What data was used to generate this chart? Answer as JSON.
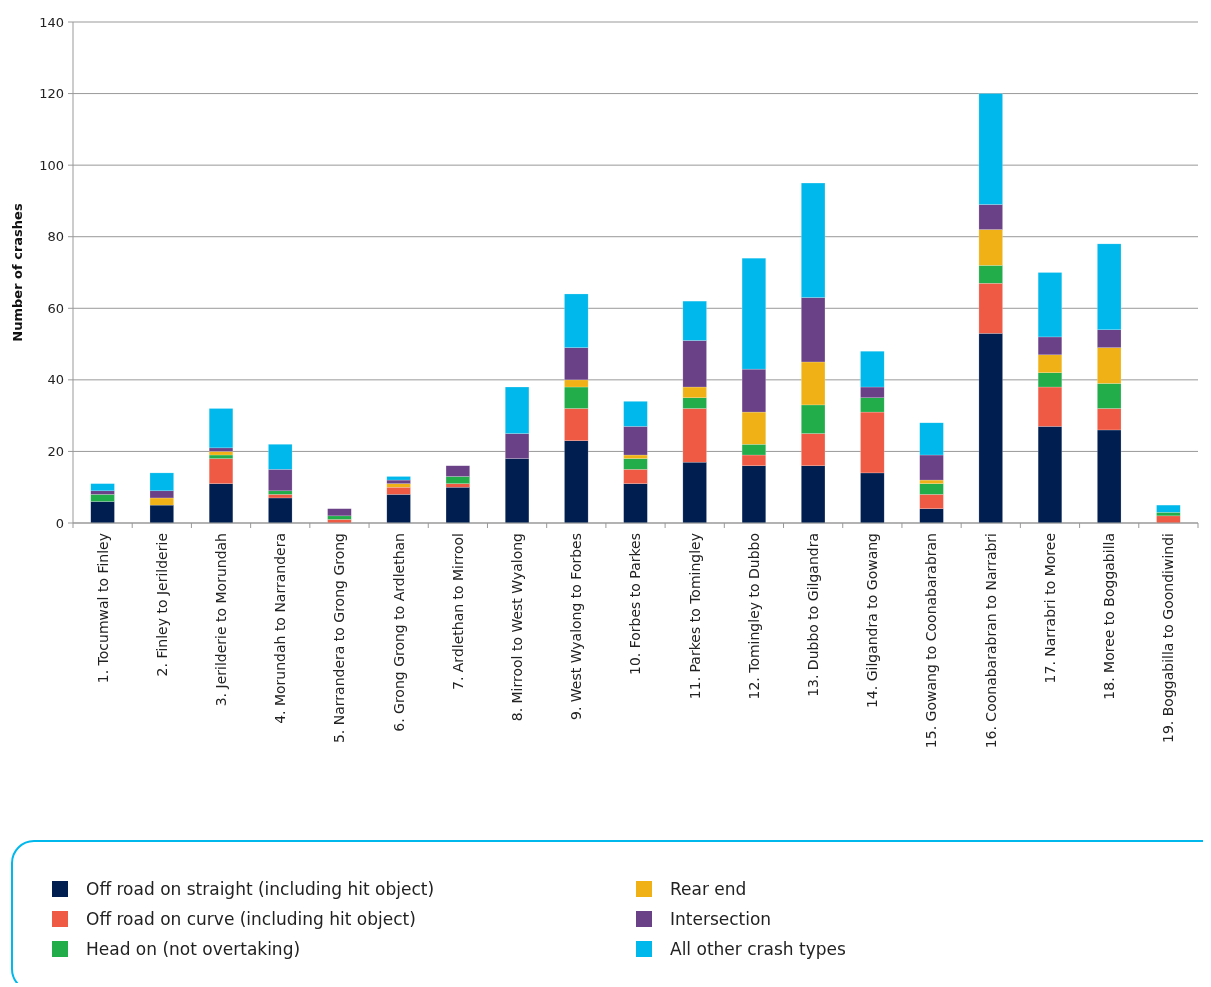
{
  "chart_data": {
    "type": "bar",
    "stacked": true,
    "ylabel": "Number of crashes",
    "categories": [
      "1. Tocumwal to Finley",
      "2. Finley to Jerilderie",
      "3. Jerilderie to Morundah",
      "4. Morundah to Narrandera",
      "5. Narrandera to Grong Grong",
      "6. Grong Grong to Ardlethan",
      "7. Ardlethan to Mirrool",
      "8. Mirrool to West Wyalong",
      "9. West Wyalong to Forbes",
      "10. Forbes to Parkes",
      "11. Parkes to Tomingley",
      "12. Tomingley to Dubbo",
      "13. Dubbo to Gilgandra",
      "14. Gilgandra to Gowang",
      "15. Gowang to Coonabarabran",
      "16. Coonabarabran to Narrabri",
      "17. Narrabri to Moree",
      "18. Moree to Boggabilla",
      "19. Boggabilla to Goondiwindi"
    ],
    "series": [
      {
        "name": "Off road on straight (including hit object)",
        "color": "#001e50",
        "values": [
          6,
          5,
          11,
          7,
          0,
          8,
          10,
          18,
          23,
          11,
          17,
          16,
          16,
          14,
          4,
          53,
          27,
          26,
          0
        ]
      },
      {
        "name": "Off road on curve (including hit object)",
        "color": "#ee5a44",
        "values": [
          0,
          0,
          7,
          1,
          1,
          2,
          1,
          0,
          9,
          4,
          15,
          3,
          9,
          17,
          4,
          14,
          11,
          6,
          2
        ]
      },
      {
        "name": "Head on (not overtaking)",
        "color": "#22ac4a",
        "values": [
          2,
          0,
          1,
          1,
          1,
          0,
          2,
          0,
          6,
          3,
          3,
          3,
          8,
          4,
          3,
          5,
          4,
          7,
          1
        ]
      },
      {
        "name": "Rear end",
        "color": "#efb115",
        "values": [
          0,
          2,
          1,
          0,
          0,
          1,
          0,
          0,
          2,
          1,
          3,
          9,
          12,
          0,
          1,
          10,
          5,
          10,
          0
        ]
      },
      {
        "name": "Intersection",
        "color": "#6a4187",
        "values": [
          1,
          2,
          1,
          6,
          2,
          1,
          3,
          7,
          9,
          8,
          13,
          12,
          18,
          3,
          7,
          7,
          5,
          5,
          0
        ]
      },
      {
        "name": "All other crash types",
        "color": "#00b8eb",
        "values": [
          2,
          5,
          11,
          7,
          0,
          1,
          0,
          13,
          15,
          7,
          11,
          31,
          32,
          10,
          9,
          31,
          18,
          24,
          2
        ]
      }
    ],
    "ylim": [
      0,
      140
    ],
    "yticks": [
      0,
      20,
      40,
      60,
      80,
      100,
      120,
      140
    ],
    "grid": "y",
    "legend": "bottom"
  }
}
